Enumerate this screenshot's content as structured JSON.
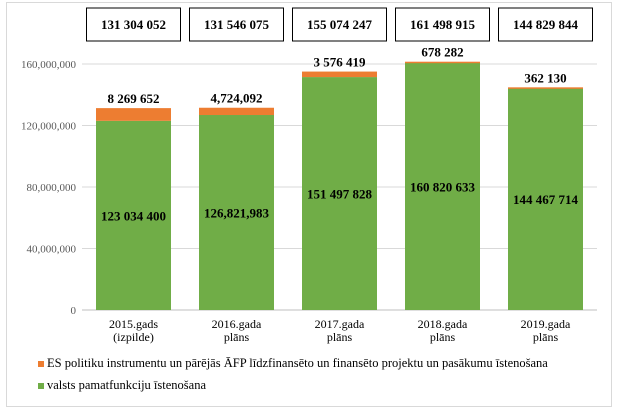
{
  "chart_data": {
    "type": "stacked-bar",
    "categories": [
      "2015.gads\n(izpilde)",
      "2016.gada\nplāns",
      "2017.gada\nplāns",
      "2018.gada\nplāns",
      "2019.gada\nplāns"
    ],
    "series": [
      {
        "name": "valsts pamatfunkciju īstenošana",
        "color": "#70ad47",
        "values": [
          123034400,
          126821983,
          151497828,
          160820633,
          144467714
        ],
        "labels": [
          "123 034 400",
          "126,821,983",
          "151 497 828",
          "160 820 633",
          "144 467 714"
        ]
      },
      {
        "name": "ES politiku instrumentu un pārējās ĀFP līdzfinansēto un finansēto projektu un pasākumu īstenošana",
        "color": "#ed7d31",
        "values": [
          8269652,
          4724092,
          3576419,
          678282,
          362130
        ],
        "labels": [
          "8 269 652",
          "4,724,092",
          "3 576 419",
          "678 282",
          "362 130"
        ]
      }
    ],
    "totals": [
      "131 304 052",
      "131 546 075",
      "155 074 247",
      "161 498 915",
      "144 829 844"
    ],
    "yticks": [
      "0",
      "40,000,000",
      "80,000,000",
      "120,000,000",
      "160,000,000"
    ],
    "ylim": [
      0,
      160000000
    ],
    "grid": true,
    "legend_position": "bottom"
  }
}
